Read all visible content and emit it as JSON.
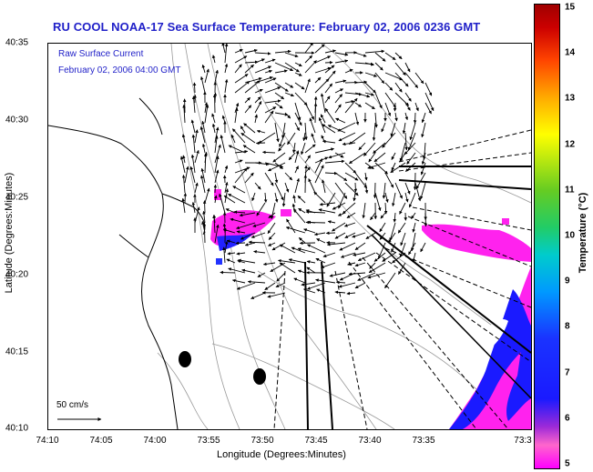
{
  "title": "RU COOL  NOAA-17  Sea Surface Temperature:  February 02, 2006 0236 GMT",
  "current_label_line1": "Raw Surface Current",
  "current_label_line2": "February 02, 2006 04:00 GMT",
  "scale_label": "50 cm/s",
  "x_axis": {
    "label": "Longitude (Degrees:Minutes)",
    "ticks": [
      "74:10",
      "74:05",
      "74:00",
      "73:55",
      "73:50",
      "73:45",
      "73:40",
      "73:35",
      "73:3"
    ]
  },
  "y_axis": {
    "label": "Latitude (Degrees:Minutes)",
    "ticks": [
      "40:35",
      "40:30",
      "40:25",
      "40:20",
      "40:15",
      "40:10"
    ]
  },
  "colorbar": {
    "label": "Temperature (°C)",
    "ticks": [
      "15",
      "14",
      "13",
      "12",
      "11",
      "10",
      "9",
      "8",
      "7",
      "6",
      "5"
    ],
    "min": 5,
    "max": 15
  },
  "colors": {
    "title": "#1f1fc8",
    "sst_cold": "#ff00ff",
    "sst_blue": "#1a1aff",
    "arrows": "#000000",
    "coast": "#000000",
    "bathymetry": "#888888"
  }
}
